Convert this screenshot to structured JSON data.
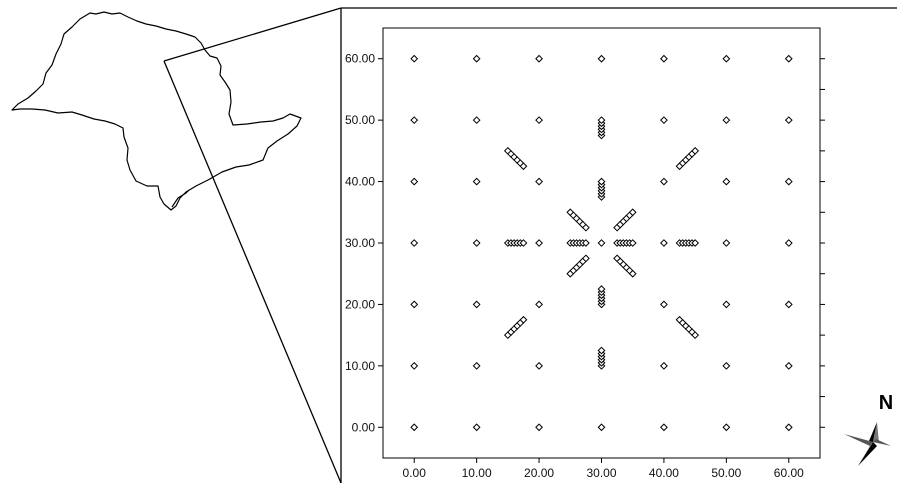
{
  "chart_data": {
    "type": "scatter",
    "title": "",
    "xlabel": "",
    "ylabel": "",
    "xlim": [
      -5,
      65
    ],
    "ylim": [
      -5,
      65
    ],
    "x_ticks": [
      0,
      10,
      20,
      30,
      40,
      50,
      60
    ],
    "y_ticks": [
      0,
      10,
      20,
      30,
      40,
      50,
      60
    ],
    "x_tick_labels": [
      "0.00",
      "10.00",
      "20.00",
      "30.00",
      "40.00",
      "50.00",
      "60.00"
    ],
    "y_tick_labels": [
      "0.00",
      "10.00",
      "20.00",
      "30.00",
      "40.00",
      "50.00",
      "60.00"
    ],
    "grid": false,
    "marker": "diamond",
    "series": [
      {
        "points": [
          [
            0,
            0
          ],
          [
            10,
            0
          ],
          [
            20,
            0
          ],
          [
            30,
            0
          ],
          [
            40,
            0
          ],
          [
            50,
            0
          ],
          [
            60,
            0
          ],
          [
            0,
            10
          ],
          [
            10,
            10
          ],
          [
            20,
            10
          ],
          [
            40,
            10
          ],
          [
            50,
            10
          ],
          [
            60,
            10
          ],
          [
            0,
            20
          ],
          [
            10,
            20
          ],
          [
            20,
            20
          ],
          [
            40,
            20
          ],
          [
            50,
            20
          ],
          [
            60,
            20
          ],
          [
            0,
            30
          ],
          [
            10,
            30
          ],
          [
            20,
            30
          ],
          [
            30,
            30
          ],
          [
            40,
            30
          ],
          [
            50,
            30
          ],
          [
            60,
            30
          ],
          [
            0,
            40
          ],
          [
            10,
            40
          ],
          [
            20,
            40
          ],
          [
            40,
            40
          ],
          [
            50,
            40
          ],
          [
            60,
            40
          ],
          [
            0,
            50
          ],
          [
            10,
            50
          ],
          [
            20,
            50
          ],
          [
            40,
            50
          ],
          [
            50,
            50
          ],
          [
            60,
            50
          ],
          [
            0,
            60
          ],
          [
            10,
            60
          ],
          [
            20,
            60
          ],
          [
            30,
            60
          ],
          [
            40,
            60
          ],
          [
            50,
            60
          ],
          [
            60,
            60
          ],
          [
            30,
            47.5
          ],
          [
            30,
            48
          ],
          [
            30,
            48.5
          ],
          [
            30,
            49
          ],
          [
            30,
            49.5
          ],
          [
            30,
            50
          ],
          [
            30,
            37.5
          ],
          [
            30,
            38
          ],
          [
            30,
            38.5
          ],
          [
            30,
            39
          ],
          [
            30,
            39.5
          ],
          [
            30,
            40
          ],
          [
            30,
            20
          ],
          [
            30,
            20.5
          ],
          [
            30,
            21
          ],
          [
            30,
            21.5
          ],
          [
            30,
            22
          ],
          [
            30,
            22.5
          ],
          [
            30,
            10
          ],
          [
            30,
            10.5
          ],
          [
            30,
            11
          ],
          [
            30,
            11.5
          ],
          [
            30,
            12
          ],
          [
            30,
            12.5
          ],
          [
            15,
            30
          ],
          [
            15.5,
            30
          ],
          [
            16,
            30
          ],
          [
            16.5,
            30
          ],
          [
            17,
            30
          ],
          [
            17.5,
            30
          ],
          [
            25,
            30
          ],
          [
            25.5,
            30
          ],
          [
            26,
            30
          ],
          [
            26.5,
            30
          ],
          [
            27,
            30
          ],
          [
            27.5,
            30
          ],
          [
            32.5,
            30
          ],
          [
            33,
            30
          ],
          [
            33.5,
            30
          ],
          [
            34,
            30
          ],
          [
            34.5,
            30
          ],
          [
            35,
            30
          ],
          [
            42.5,
            30
          ],
          [
            43,
            30
          ],
          [
            43.5,
            30
          ],
          [
            44,
            30
          ],
          [
            44.5,
            30
          ],
          [
            45,
            30
          ],
          [
            15,
            45
          ],
          [
            15.5,
            44.5
          ],
          [
            16,
            44
          ],
          [
            16.5,
            43.5
          ],
          [
            17,
            43
          ],
          [
            17.5,
            42.5
          ],
          [
            25,
            35
          ],
          [
            25.5,
            34.5
          ],
          [
            26,
            34
          ],
          [
            26.5,
            33.5
          ],
          [
            27,
            33
          ],
          [
            27.5,
            32.5
          ],
          [
            32.5,
            32.5
          ],
          [
            33,
            33
          ],
          [
            33.5,
            33.5
          ],
          [
            34,
            34
          ],
          [
            34.5,
            34.5
          ],
          [
            35,
            35
          ],
          [
            42.5,
            42.5
          ],
          [
            43,
            43
          ],
          [
            43.5,
            43.5
          ],
          [
            44,
            44
          ],
          [
            44.5,
            44.5
          ],
          [
            45,
            45
          ],
          [
            25,
            25
          ],
          [
            25.5,
            25.5
          ],
          [
            26,
            26
          ],
          [
            26.5,
            26.5
          ],
          [
            27,
            27
          ],
          [
            27.5,
            27.5
          ],
          [
            15,
            15
          ],
          [
            15.5,
            15.5
          ],
          [
            16,
            16
          ],
          [
            16.5,
            16.5
          ],
          [
            17,
            17
          ],
          [
            17.5,
            17.5
          ],
          [
            32.5,
            27.5
          ],
          [
            33,
            27
          ],
          [
            33.5,
            26.5
          ],
          [
            34,
            26
          ],
          [
            34.5,
            25.5
          ],
          [
            35,
            25
          ],
          [
            42.5,
            17.5
          ],
          [
            43,
            17
          ],
          [
            43.5,
            16.5
          ],
          [
            44,
            16
          ],
          [
            44.5,
            15.5
          ],
          [
            45,
            15
          ]
        ]
      }
    ]
  },
  "compass": {
    "label": "N",
    "icon": "north-arrow-icon"
  },
  "inset_map": {
    "icon": "region-outline-map-icon"
  }
}
